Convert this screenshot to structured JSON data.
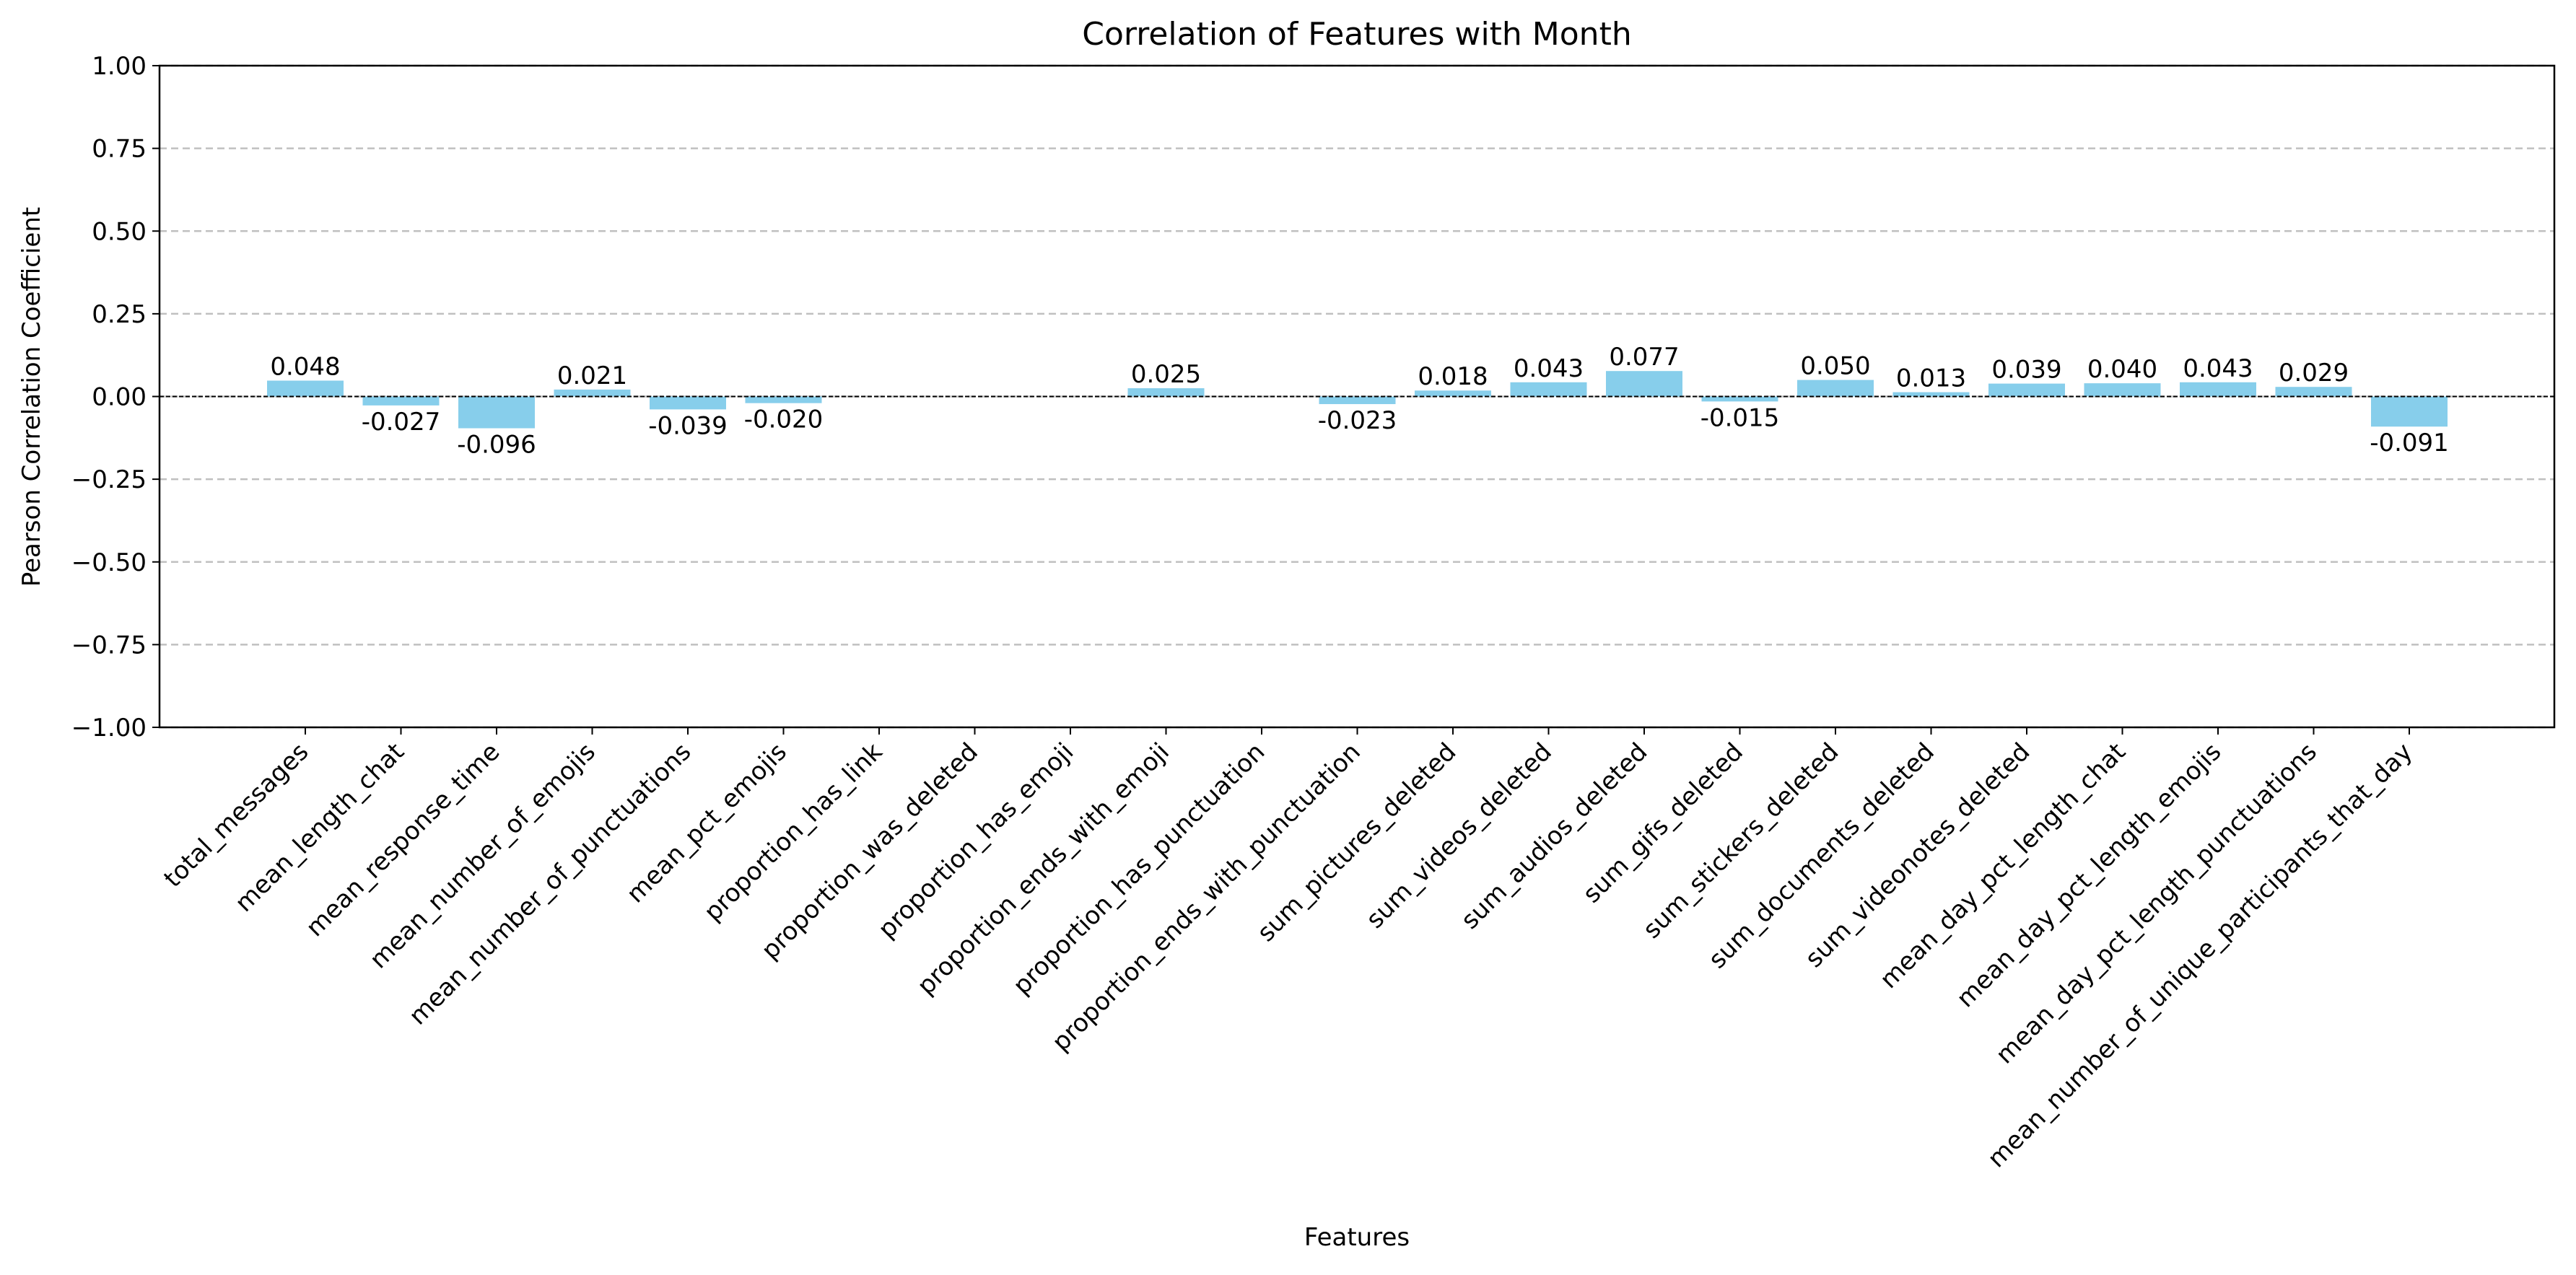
{
  "chart_data": {
    "type": "bar",
    "title": "Correlation of Features with Month",
    "xlabel": "Features",
    "ylabel": "Pearson Correlation Coefficient",
    "categories": [
      "total_messages",
      "mean_length_chat",
      "mean_response_time",
      "mean_number_of_emojis",
      "mean_number_of_punctuations",
      "mean_pct_emojis",
      "proportion_has_link",
      "proportion_was_deleted",
      "proportion_has_emoji",
      "proportion_ends_with_emoji",
      "proportion_has_punctuation",
      "proportion_ends_with_punctuation",
      "sum_pictures_deleted",
      "sum_videos_deleted",
      "sum_audios_deleted",
      "sum_gifs_deleted",
      "sum_stickers_deleted",
      "sum_documents_deleted",
      "sum_videonotes_deleted",
      "mean_day_pct_length_chat",
      "mean_day_pct_length_emojis",
      "mean_day_pct_length_punctuations",
      "mean_number_of_unique_participants_that_day"
    ],
    "values": [
      0.048,
      -0.027,
      -0.096,
      0.021,
      -0.039,
      -0.02,
      null,
      null,
      null,
      0.025,
      null,
      -0.023,
      0.018,
      0.043,
      0.077,
      -0.015,
      0.05,
      0.013,
      0.039,
      0.04,
      0.043,
      0.029,
      -0.091
    ],
    "value_labels": [
      "0.048",
      "-0.027",
      "-0.096",
      "0.021",
      "-0.039",
      "-0.020",
      null,
      null,
      null,
      "0.025",
      null,
      "-0.023",
      "0.018",
      "0.043",
      "0.077",
      "-0.015",
      "0.050",
      "0.013",
      "0.039",
      "0.040",
      "0.043",
      "0.029",
      "-0.091"
    ],
    "color": "#87ceeb",
    "ylim": [
      -1,
      1
    ],
    "yticks": [
      {
        "value": -1,
        "label": "−1.00"
      },
      {
        "value": -0.75,
        "label": "−0.75"
      },
      {
        "value": -0.5,
        "label": "−0.50"
      },
      {
        "value": -0.25,
        "label": "−0.25"
      },
      {
        "value": 0,
        "label": "0.00"
      },
      {
        "value": 0.25,
        "label": "0.25"
      },
      {
        "value": 0.5,
        "label": "0.50"
      },
      {
        "value": 0.75,
        "label": "0.75"
      },
      {
        "value": 1,
        "label": "1.00"
      }
    ],
    "grid": true
  }
}
